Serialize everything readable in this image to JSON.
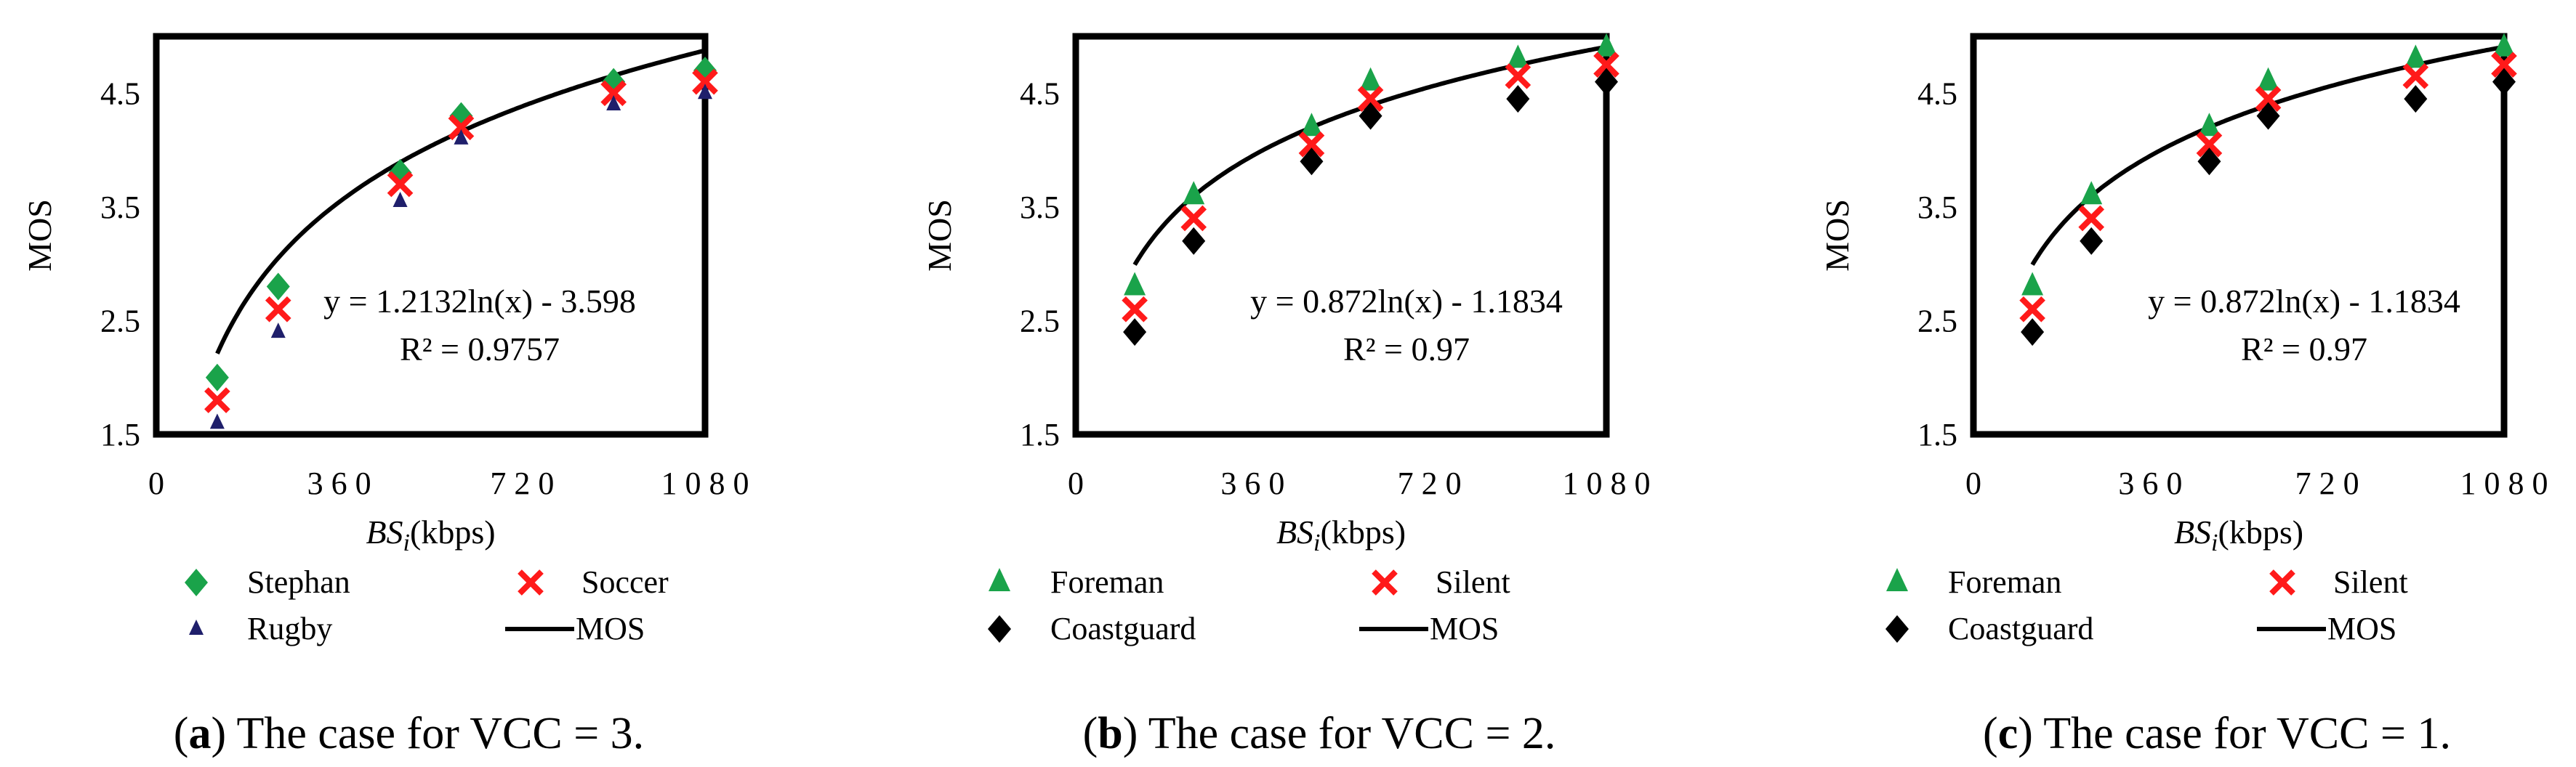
{
  "chart_data": [
    {
      "type": "scatter",
      "panel_label": "a",
      "caption": "The case for VCC = 3.",
      "xlabel_var": "BS",
      "xlabel_sub": "i",
      "xlabel_unit": "(kbps)",
      "ylabel": "MOS",
      "xlim": [
        0,
        1080
      ],
      "ylim": [
        1.5,
        5.0
      ],
      "xticks": [
        0,
        360,
        720,
        1080
      ],
      "xtick_labels": [
        "0",
        "3 6 0",
        "7 2 0",
        "1 0 8 0"
      ],
      "yticks": [
        1.5,
        2.5,
        3.5,
        4.5
      ],
      "ytick_labels": [
        "1.5",
        "2.5",
        "3.5",
        "4.5"
      ],
      "fit": {
        "a": 1.2132,
        "b": -3.598,
        "equation": "y = 1.2132ln(x) - 3.598",
        "r2_label": "R² = 0.9757"
      },
      "series": [
        {
          "name": "Stephan",
          "marker": "diamond",
          "color": "#1aa34a",
          "x": [
            120,
            240,
            480,
            600,
            900,
            1080
          ],
          "y": [
            2.0,
            2.8,
            3.8,
            4.3,
            4.6,
            4.7
          ]
        },
        {
          "name": "Soccer",
          "marker": "x",
          "color": "#ff1a1a",
          "x": [
            120,
            240,
            480,
            600,
            900,
            1080
          ],
          "y": [
            1.8,
            2.6,
            3.7,
            4.2,
            4.5,
            4.6
          ]
        },
        {
          "name": "Rugby",
          "marker": "triangle-small",
          "color": "#1f1f6b",
          "x": [
            120,
            240,
            480,
            600,
            900,
            1080
          ],
          "y": [
            1.6,
            2.4,
            3.55,
            4.1,
            4.4,
            4.5
          ]
        }
      ],
      "legend": [
        "Stephan",
        "Soccer",
        "Rugby",
        "MOS"
      ],
      "fit_name": "MOS"
    },
    {
      "type": "scatter",
      "panel_label": "b",
      "caption": "The case for VCC = 2.",
      "xlabel_var": "BS",
      "xlabel_sub": "i",
      "xlabel_unit": "(kbps)",
      "ylabel": "MOS",
      "xlim": [
        0,
        1080
      ],
      "ylim": [
        1.5,
        5.0
      ],
      "xticks": [
        0,
        360,
        720,
        1080
      ],
      "xtick_labels": [
        "0",
        "3 6 0",
        "7 2 0",
        "1 0 8 0"
      ],
      "yticks": [
        1.5,
        2.5,
        3.5,
        4.5
      ],
      "ytick_labels": [
        "1.5",
        "2.5",
        "3.5",
        "4.5"
      ],
      "fit": {
        "a": 0.872,
        "b": -1.1834,
        "equation": "y = 0.872ln(x) - 1.1834",
        "r2_label": "R² = 0.97"
      },
      "series": [
        {
          "name": "Foreman",
          "marker": "triangle",
          "color": "#1aa34a",
          "x": [
            120,
            240,
            480,
            600,
            900,
            1080
          ],
          "y": [
            2.8,
            3.6,
            4.2,
            4.6,
            4.8,
            4.9
          ]
        },
        {
          "name": "Silent",
          "marker": "x",
          "color": "#ff1a1a",
          "x": [
            120,
            240,
            480,
            600,
            900,
            1080
          ],
          "y": [
            2.6,
            3.4,
            4.05,
            4.45,
            4.65,
            4.75
          ]
        },
        {
          "name": "Coastguard",
          "marker": "diamond",
          "color": "#000000",
          "x": [
            120,
            240,
            480,
            600,
            900,
            1080
          ],
          "y": [
            2.4,
            3.2,
            3.9,
            4.3,
            4.45,
            4.6
          ]
        }
      ],
      "legend": [
        "Foreman",
        "Silent",
        "Coastguard",
        "MOS"
      ],
      "fit_name": "MOS"
    },
    {
      "type": "scatter",
      "panel_label": "c",
      "caption": "The case for VCC = 1.",
      "xlabel_var": "BS",
      "xlabel_sub": "i",
      "xlabel_unit": "(kbps)",
      "ylabel": "MOS",
      "xlim": [
        0,
        1080
      ],
      "ylim": [
        1.5,
        5.0
      ],
      "xticks": [
        0,
        360,
        720,
        1080
      ],
      "xtick_labels": [
        "0",
        "3 6 0",
        "7 2 0",
        "1 0 8 0"
      ],
      "yticks": [
        1.5,
        2.5,
        3.5,
        4.5
      ],
      "ytick_labels": [
        "1.5",
        "2.5",
        "3.5",
        "4.5"
      ],
      "fit": {
        "a": 0.872,
        "b": -1.1834,
        "equation": "y = 0.872ln(x) - 1.1834",
        "r2_label": "R² = 0.97"
      },
      "series": [
        {
          "name": "Foreman",
          "marker": "triangle",
          "color": "#1aa34a",
          "x": [
            120,
            240,
            480,
            600,
            900,
            1080
          ],
          "y": [
            2.8,
            3.6,
            4.2,
            4.6,
            4.8,
            4.9
          ]
        },
        {
          "name": "Silent",
          "marker": "x",
          "color": "#ff1a1a",
          "x": [
            120,
            240,
            480,
            600,
            900,
            1080
          ],
          "y": [
            2.6,
            3.4,
            4.05,
            4.45,
            4.65,
            4.75
          ]
        },
        {
          "name": "Coastguard",
          "marker": "diamond",
          "color": "#000000",
          "x": [
            120,
            240,
            480,
            600,
            900,
            1080
          ],
          "y": [
            2.4,
            3.2,
            3.9,
            4.3,
            4.45,
            4.6
          ]
        }
      ],
      "legend": [
        "Foreman",
        "Silent",
        "Coastguard",
        "MOS"
      ],
      "fit_name": "MOS"
    }
  ]
}
